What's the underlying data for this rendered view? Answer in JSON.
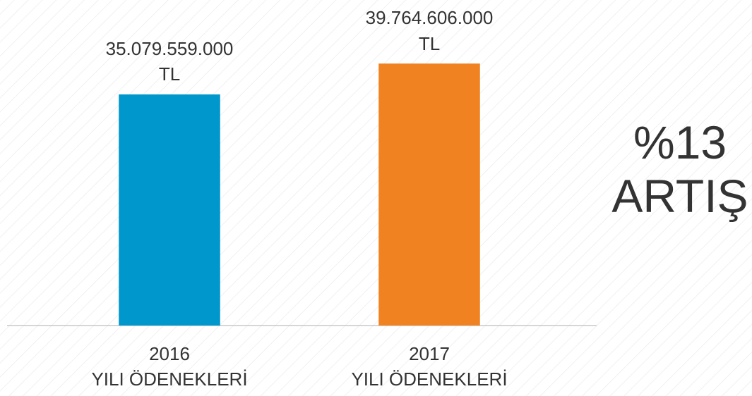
{
  "chart_data": {
    "type": "bar",
    "categories": [
      "2016\nYILI ÖDENEKLERİ",
      "2017\nYILI ÖDENEKLERİ"
    ],
    "values": [
      35079559000,
      39764606000
    ],
    "value_labels": [
      "35.079.559.000\nTL",
      "39.764.606.000\nTL"
    ],
    "colors": [
      "#0097cc",
      "#f08222"
    ],
    "ylim": [
      0,
      40000000000
    ],
    "annotation": "%13\nARTIŞ"
  }
}
